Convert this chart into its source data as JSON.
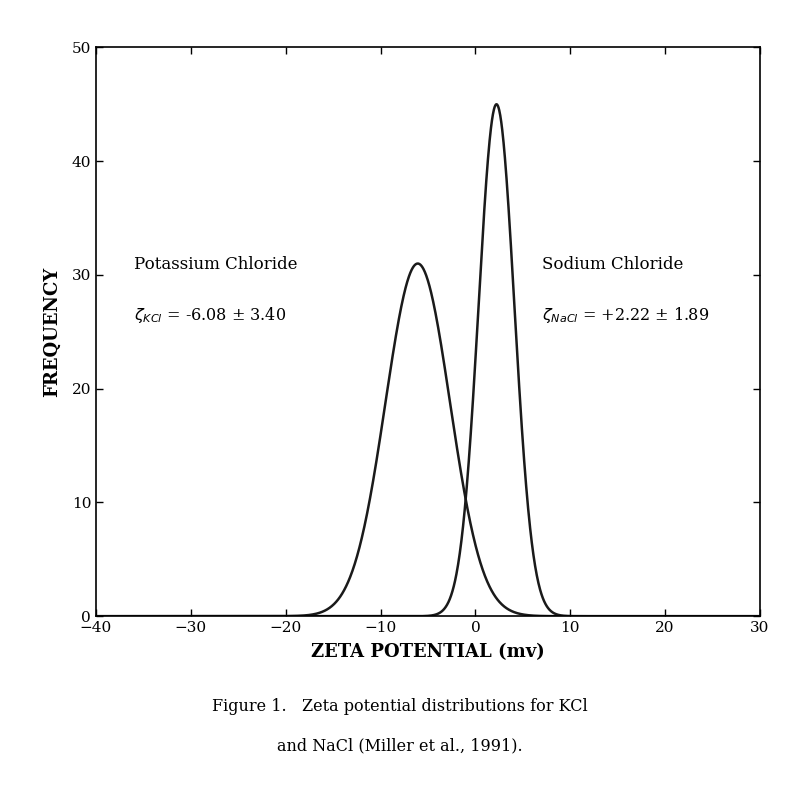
{
  "kcl_mean": -6.08,
  "kcl_std": 3.4,
  "kcl_peak": 31,
  "nacl_mean": 2.22,
  "nacl_std": 1.89,
  "nacl_peak": 45,
  "xlim": [
    -40,
    30
  ],
  "ylim": [
    0,
    50
  ],
  "xticks": [
    -40,
    -30,
    -20,
    -10,
    0,
    10,
    20,
    30
  ],
  "yticks": [
    0,
    10,
    20,
    30,
    40,
    50
  ],
  "xlabel": "ZETA POTENTIAL (mv)",
  "ylabel": "FREQUENCY",
  "line_color": "#1a1a1a",
  "line_width": 1.8,
  "background_color": "#ffffff",
  "kcl_label_title": "Potassium Chloride",
  "nacl_label_title": "Sodium Chloride",
  "figsize": [
    8.0,
    7.9
  ],
  "dpi": 100,
  "caption_line1": "Figure 1.   Zeta potential distributions for KCl",
  "caption_line2": "and NaCl (Miller et al., 1991)."
}
